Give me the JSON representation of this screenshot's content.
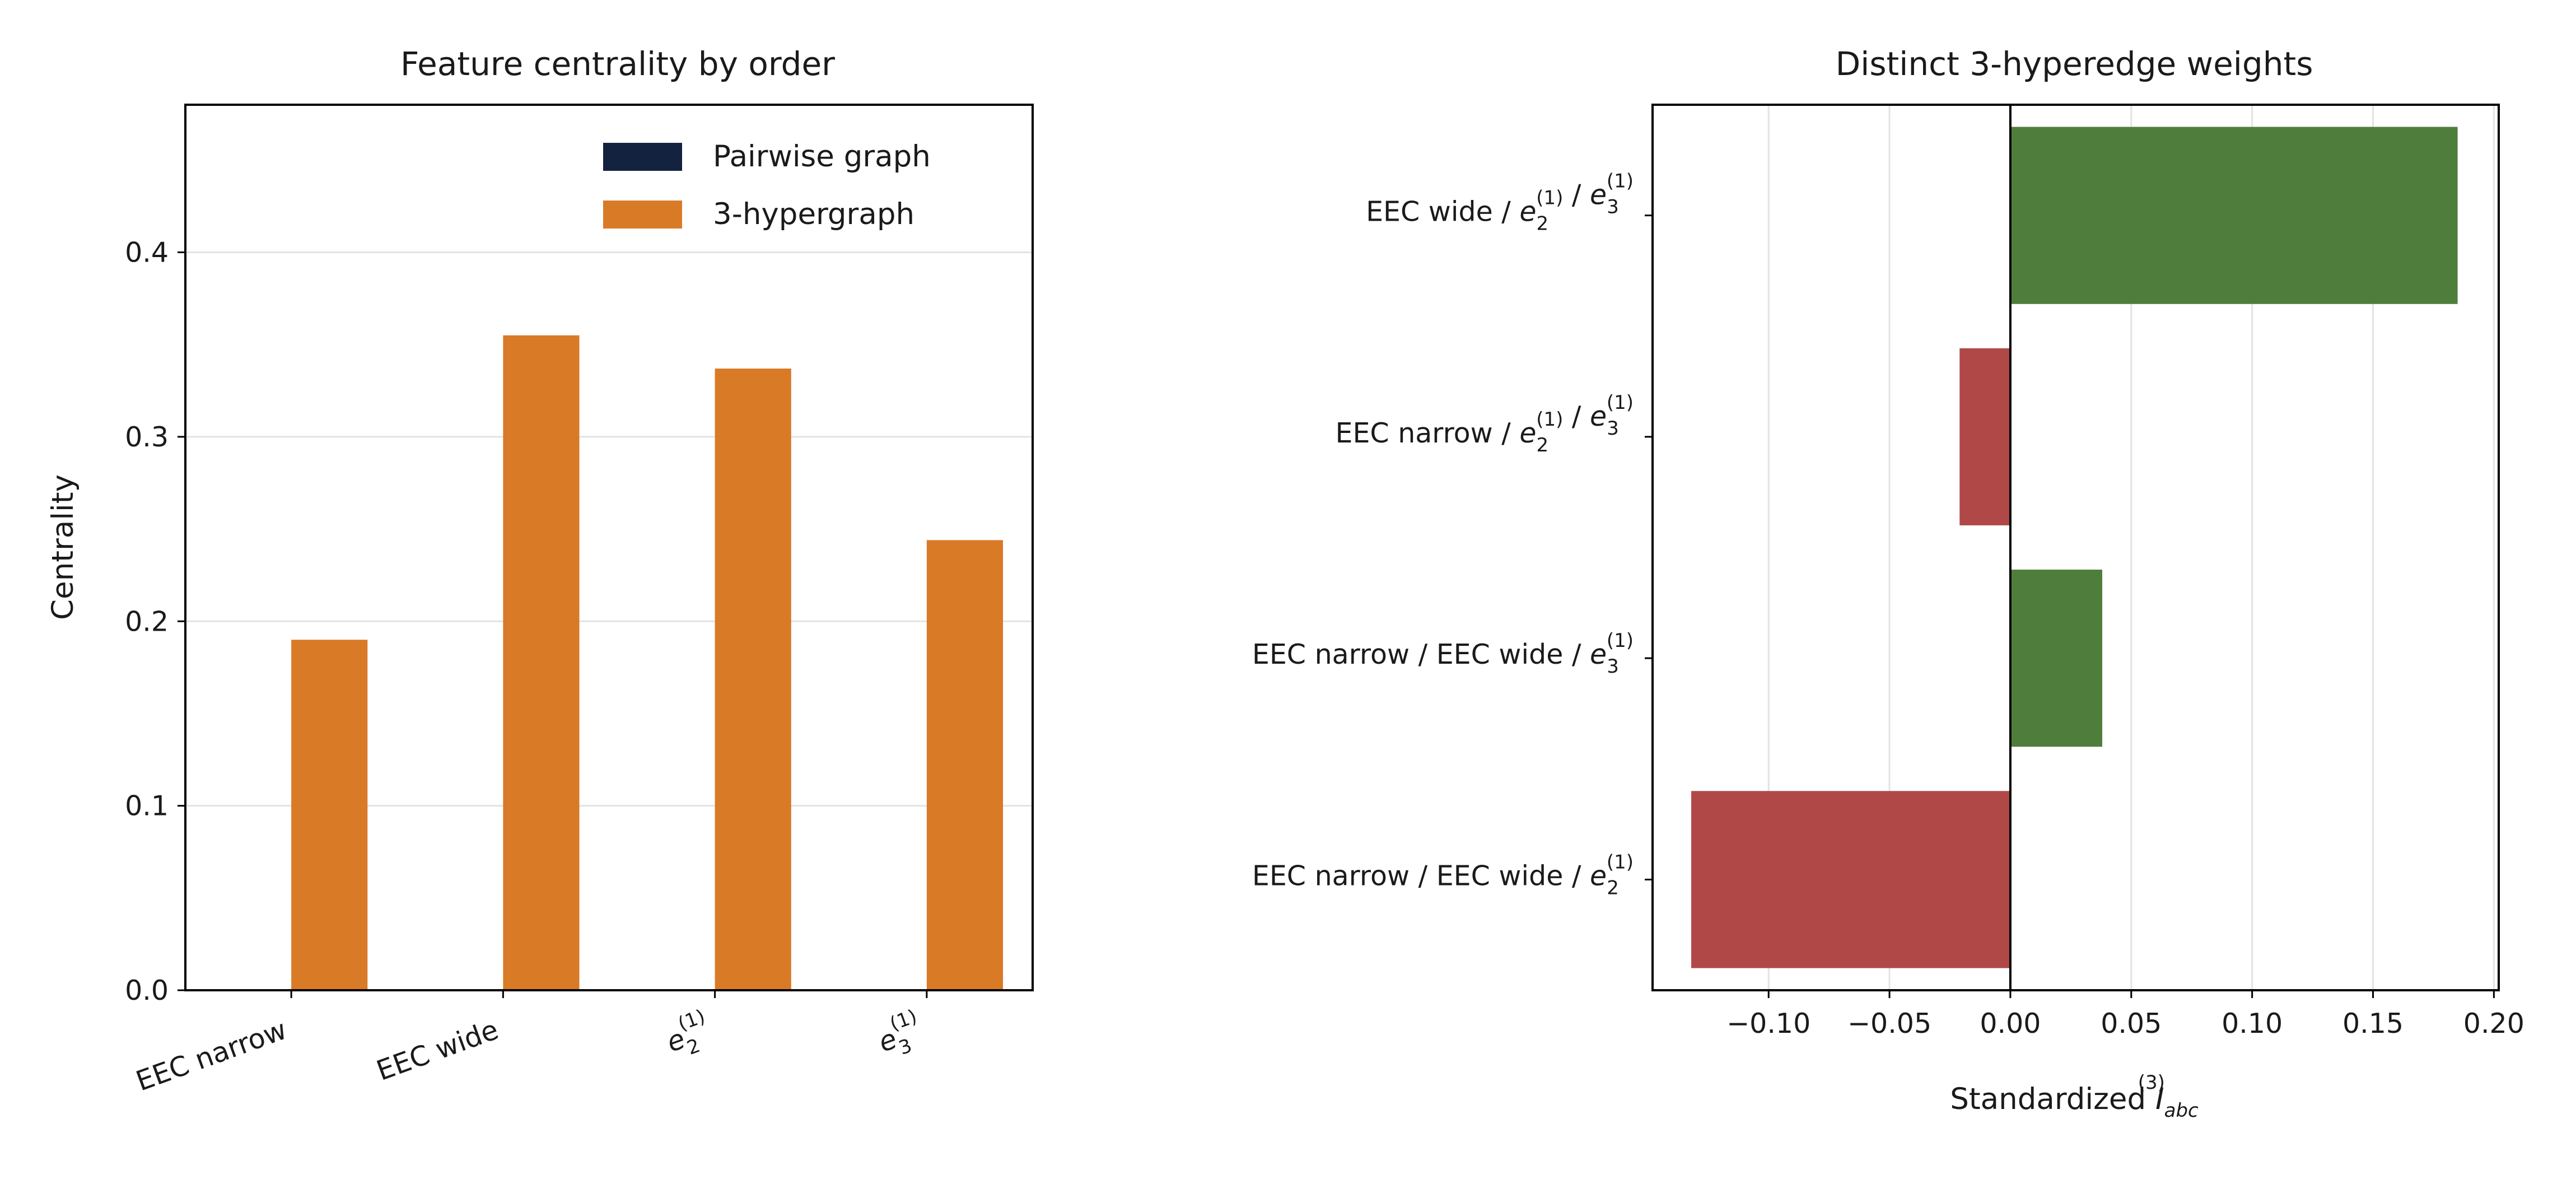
{
  "chart_data": [
    {
      "type": "bar",
      "title": "Feature centrality by order",
      "xlabel": "",
      "ylabel": "Centrality",
      "categories": [
        {
          "main": "EEC narrow",
          "sub": "",
          "sup": ""
        },
        {
          "main": "EEC wide",
          "sub": "",
          "sup": ""
        },
        {
          "main": "e",
          "sub": "2",
          "sup": "(1)"
        },
        {
          "main": "e",
          "sub": "3",
          "sup": "(1)"
        }
      ],
      "series": [
        {
          "name": "Pairwise graph",
          "color": "#13223f",
          "values": [
            0,
            0,
            0,
            0
          ]
        },
        {
          "name": "3-hypergraph",
          "color": "#d97a27",
          "values": [
            0.19,
            0.355,
            0.337,
            0.244
          ]
        }
      ],
      "ylim": [
        0,
        0.48
      ],
      "yticks": [
        0.0,
        0.1,
        0.2,
        0.3,
        0.4
      ],
      "grid": "y",
      "legend": "top-right"
    },
    {
      "type": "bar",
      "orientation": "horizontal",
      "title": "Distinct 3-hyperedge weights",
      "xlabel": {
        "main": "Standardized ",
        "symbol": "I",
        "sub": "abc",
        "sup": "(3)"
      },
      "ylabel": "",
      "categories": [
        [
          {
            "t": "EEC wide / "
          },
          {
            "e": "2"
          },
          {
            "t": " / "
          },
          {
            "e": "3"
          }
        ],
        [
          {
            "t": "EEC narrow / "
          },
          {
            "e": "2"
          },
          {
            "t": " / "
          },
          {
            "e": "3"
          }
        ],
        [
          {
            "t": "EEC narrow / EEC wide / "
          },
          {
            "e": "3"
          }
        ],
        [
          {
            "t": "EEC narrow / EEC wide / "
          },
          {
            "e": "2"
          }
        ]
      ],
      "values": [
        0.185,
        -0.021,
        0.038,
        -0.132
      ],
      "positive_color": "#4f7d3b",
      "negative_color": "#b14848",
      "xlim": [
        -0.148,
        0.202
      ],
      "xticks": [
        -0.1,
        -0.05,
        0.0,
        0.05,
        0.1,
        0.15,
        0.2
      ],
      "xtick_labels": [
        "−0.10",
        "−0.05",
        "0.00",
        "0.05",
        "0.10",
        "0.15",
        "0.20"
      ],
      "grid": "x"
    }
  ]
}
